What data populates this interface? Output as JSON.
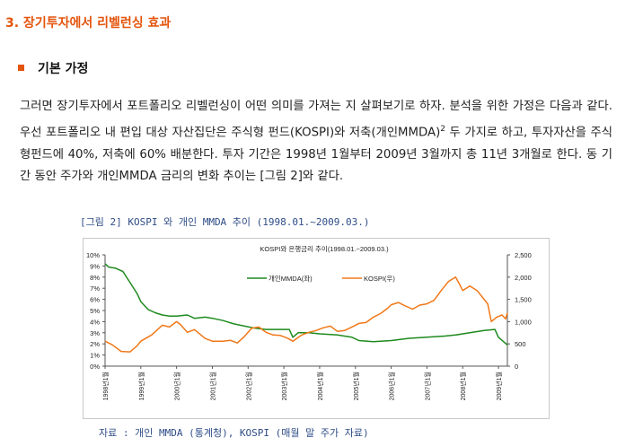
{
  "section_title": "3. 장기투자에서 리벨런싱 효과",
  "sub_heading": "기본 가정",
  "paragraph": {
    "before_sup": "그러면 장기투자에서 포트폴리오 리벨런싱이 어떤 의미를 가져는 지 살펴보기로 하자. 분석을 위한 가정은 다음과 같다. 우선 포트폴리오 내 편입 대상 자산집단은 주식형 펀드(KOSPI)와 저축(개인MMDA)",
    "sup": "2",
    "after_sup": " 두 가지로 하고, 투자자산을 주식형펀드에 40%, 저축에 60% 배분한다. 투자 기간은 1998년 1월부터 2009년 3월까지 총 11년 3개월로 한다. 동 기간 동안 주가와 개인MMDA 금리의 변화 추이는 [그림 2]와 같다."
  },
  "figure_caption": "[그림 2] KOSPI 와 개인 MMDA 추이 (1998.01.~2009.03.)",
  "source_note": "자료 : 개인 MMDA (통계청), KOSPI (매월 말 주가 자료)",
  "colors": {
    "accent": "#e4540c",
    "caption": "#2e4c86",
    "mmda": "#1e8a1e",
    "kospi": "#f07818"
  },
  "chart_data": {
    "type": "line",
    "title": "KOSPI와 은행금리 추이(1998.01.~2009.03.)",
    "x_labels": [
      "1998년1월",
      "1999년1월",
      "2000년1월",
      "2001년1월",
      "2002년1월",
      "2003년1월",
      "2004년1월",
      "2005년1월",
      "2006년1월",
      "2007년1월",
      "2008년1월",
      "2009년1월"
    ],
    "y_left": {
      "ticks": [
        "10%",
        "9%",
        "8%",
        "7%",
        "6%",
        "5%",
        "4%",
        "3%",
        "2%",
        "1%",
        "0%"
      ],
      "min": 0,
      "max": 10
    },
    "y_right": {
      "ticks": [
        "2,500",
        "2,000",
        "1,500",
        "1,000",
        "500",
        "0"
      ],
      "min": 0,
      "max": 2500
    },
    "legend": [
      "개인MMDA(좌)",
      "KOSPI(우)"
    ],
    "legend_position": "top-center",
    "series": [
      {
        "name": "개인MMDA(좌)",
        "axis": "left",
        "points": [
          [
            1998.0,
            9.2
          ],
          [
            1998.1,
            8.9
          ],
          [
            1998.3,
            8.8
          ],
          [
            1998.5,
            8.5
          ],
          [
            1998.7,
            7.5
          ],
          [
            1998.9,
            6.5
          ],
          [
            1999.0,
            5.8
          ],
          [
            1999.2,
            5.1
          ],
          [
            1999.4,
            4.8
          ],
          [
            1999.6,
            4.6
          ],
          [
            1999.8,
            4.5
          ],
          [
            2000.0,
            4.5
          ],
          [
            2000.3,
            4.6
          ],
          [
            2000.5,
            4.3
          ],
          [
            2000.8,
            4.4
          ],
          [
            2001.0,
            4.3
          ],
          [
            2001.3,
            4.1
          ],
          [
            2001.6,
            3.8
          ],
          [
            2001.9,
            3.6
          ],
          [
            2002.2,
            3.4
          ],
          [
            2002.5,
            3.3
          ],
          [
            2002.8,
            3.3
          ],
          [
            2003.0,
            3.3
          ],
          [
            2003.15,
            3.3
          ],
          [
            2003.25,
            2.6
          ],
          [
            2003.4,
            3.0
          ],
          [
            2003.7,
            3.0
          ],
          [
            2004.0,
            2.9
          ],
          [
            2004.5,
            2.8
          ],
          [
            2004.9,
            2.6
          ],
          [
            2005.1,
            2.3
          ],
          [
            2005.5,
            2.2
          ],
          [
            2006.0,
            2.3
          ],
          [
            2006.5,
            2.5
          ],
          [
            2007.0,
            2.6
          ],
          [
            2007.5,
            2.7
          ],
          [
            2007.8,
            2.8
          ],
          [
            2008.2,
            3.0
          ],
          [
            2008.6,
            3.2
          ],
          [
            2008.9,
            3.3
          ],
          [
            2009.0,
            2.6
          ],
          [
            2009.25,
            1.9
          ]
        ]
      },
      {
        "name": "KOSPI(우)",
        "axis": "right",
        "points": [
          [
            1998.0,
            560
          ],
          [
            1998.2,
            480
          ],
          [
            1998.45,
            330
          ],
          [
            1998.7,
            320
          ],
          [
            1998.9,
            460
          ],
          [
            1999.0,
            560
          ],
          [
            1999.3,
            700
          ],
          [
            1999.6,
            920
          ],
          [
            1999.8,
            880
          ],
          [
            2000.0,
            1000
          ],
          [
            2000.1,
            940
          ],
          [
            2000.3,
            760
          ],
          [
            2000.5,
            820
          ],
          [
            2000.8,
            620
          ],
          [
            2001.0,
            560
          ],
          [
            2001.3,
            560
          ],
          [
            2001.5,
            580
          ],
          [
            2001.7,
            520
          ],
          [
            2001.9,
            670
          ],
          [
            2002.1,
            850
          ],
          [
            2002.3,
            880
          ],
          [
            2002.5,
            760
          ],
          [
            2002.7,
            700
          ],
          [
            2002.9,
            690
          ],
          [
            2003.1,
            630
          ],
          [
            2003.25,
            560
          ],
          [
            2003.5,
            700
          ],
          [
            2003.7,
            760
          ],
          [
            2003.9,
            800
          ],
          [
            2004.1,
            860
          ],
          [
            2004.3,
            900
          ],
          [
            2004.5,
            780
          ],
          [
            2004.7,
            800
          ],
          [
            2004.9,
            880
          ],
          [
            2005.1,
            960
          ],
          [
            2005.3,
            980
          ],
          [
            2005.5,
            1100
          ],
          [
            2005.7,
            1180
          ],
          [
            2005.9,
            1300
          ],
          [
            2006.0,
            1380
          ],
          [
            2006.2,
            1430
          ],
          [
            2006.4,
            1350
          ],
          [
            2006.6,
            1280
          ],
          [
            2006.8,
            1370
          ],
          [
            2007.0,
            1400
          ],
          [
            2007.2,
            1480
          ],
          [
            2007.4,
            1700
          ],
          [
            2007.6,
            1900
          ],
          [
            2007.8,
            2000
          ],
          [
            2007.9,
            1860
          ],
          [
            2008.0,
            1700
          ],
          [
            2008.2,
            1800
          ],
          [
            2008.4,
            1700
          ],
          [
            2008.6,
            1500
          ],
          [
            2008.7,
            1400
          ],
          [
            2008.8,
            1000
          ],
          [
            2008.95,
            1100
          ],
          [
            2009.1,
            1150
          ],
          [
            2009.2,
            1060
          ],
          [
            2009.25,
            1200
          ]
        ]
      }
    ],
    "x_range": [
      1998.0,
      2009.25
    ],
    "grid": false
  }
}
